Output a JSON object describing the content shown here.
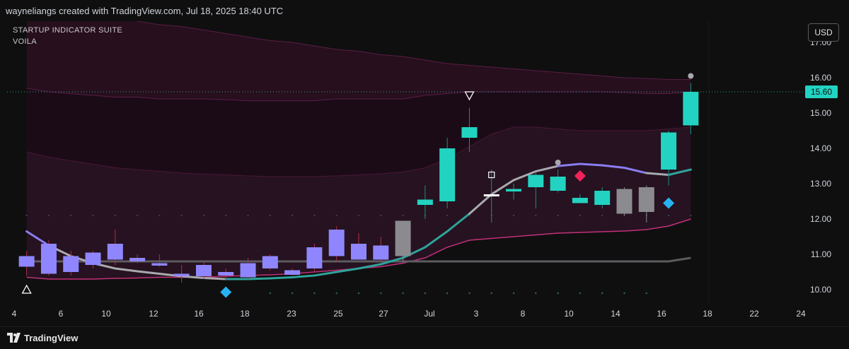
{
  "header": {
    "caption": "wayneliangs created with TradingView.com, Jul 18, 2025 18:40 UTC"
  },
  "indicators": {
    "line1": "STARTUP INDICATOR SUITE",
    "line2": "VOILA"
  },
  "currency_button": "USD",
  "footer": {
    "brand": "TradingView"
  },
  "colors": {
    "background": "#0f0f0f",
    "bull_candle": "#22d3c1",
    "bear_candle": "#8f86ff",
    "neutral_candle": "#8b8b8f",
    "band_fill": "#3a1530",
    "band_line": "#c2307a",
    "ma_teal": "#2fa39a",
    "ma_grey": "#a9a9ad",
    "ma_purple": "#8b7cf0",
    "last_price_label": "#22d3c1",
    "marker_diamond_blue": "#27b3f2",
    "marker_diamond_red": "#f0245a"
  },
  "chart_data": {
    "type": "candlestick",
    "title": "",
    "currency": "USD",
    "last_price": "15.60",
    "y_axis": {
      "ylim": [
        9.6,
        17.6
      ],
      "ticks": [
        "10.00",
        "11.00",
        "12.00",
        "13.00",
        "14.00",
        "15.00",
        "16.00",
        "17.00"
      ]
    },
    "x_axis": {
      "ticks": [
        "4",
        "6",
        "10",
        "12",
        "16",
        "18",
        "23",
        "25",
        "27",
        "Jul",
        "3",
        "8",
        "10",
        "14",
        "16",
        "18",
        "22",
        "24"
      ]
    },
    "candles": [
      {
        "i": 0,
        "o": 10.65,
        "h": 11.1,
        "l": 10.4,
        "c": 10.95,
        "color": "bear"
      },
      {
        "i": 1,
        "o": 11.3,
        "h": 11.4,
        "l": 10.4,
        "c": 10.45,
        "color": "bear"
      },
      {
        "i": 2,
        "o": 10.95,
        "h": 11.1,
        "l": 10.4,
        "c": 10.5,
        "color": "bear"
      },
      {
        "i": 3,
        "o": 11.05,
        "h": 11.1,
        "l": 10.6,
        "c": 10.7,
        "color": "bear"
      },
      {
        "i": 4,
        "o": 11.3,
        "h": 11.7,
        "l": 10.7,
        "c": 10.85,
        "color": "bear"
      },
      {
        "i": 5,
        "o": 10.9,
        "h": 11.0,
        "l": 10.75,
        "c": 10.8,
        "color": "bear"
      },
      {
        "i": 6,
        "o": 10.75,
        "h": 11.0,
        "l": 10.65,
        "c": 10.68,
        "color": "bear"
      },
      {
        "i": 7,
        "o": 10.45,
        "h": 10.7,
        "l": 10.2,
        "c": 10.38,
        "color": "bear"
      },
      {
        "i": 8,
        "o": 10.7,
        "h": 10.8,
        "l": 10.3,
        "c": 10.38,
        "color": "bear"
      },
      {
        "i": 9,
        "o": 10.5,
        "h": 10.6,
        "l": 10.3,
        "c": 10.4,
        "color": "bear"
      },
      {
        "i": 10,
        "o": 10.75,
        "h": 10.9,
        "l": 10.3,
        "c": 10.35,
        "color": "bear"
      },
      {
        "i": 11,
        "o": 10.95,
        "h": 11.0,
        "l": 10.55,
        "c": 10.6,
        "color": "bear"
      },
      {
        "i": 12,
        "o": 10.55,
        "h": 10.6,
        "l": 10.4,
        "c": 10.42,
        "color": "bear"
      },
      {
        "i": 13,
        "o": 11.2,
        "h": 11.3,
        "l": 10.5,
        "c": 10.6,
        "color": "bear"
      },
      {
        "i": 14,
        "o": 11.7,
        "h": 11.8,
        "l": 10.8,
        "c": 10.95,
        "color": "bear"
      },
      {
        "i": 15,
        "o": 11.3,
        "h": 11.6,
        "l": 10.85,
        "c": 10.85,
        "color": "bear"
      },
      {
        "i": 16,
        "o": 11.25,
        "h": 11.5,
        "l": 10.8,
        "c": 10.85,
        "color": "bear"
      },
      {
        "i": 17,
        "o": 10.95,
        "h": 11.95,
        "l": 10.8,
        "c": 11.95,
        "color": "neutral"
      },
      {
        "i": 18,
        "o": 12.4,
        "h": 12.95,
        "l": 12.0,
        "c": 12.55,
        "color": "bull"
      },
      {
        "i": 19,
        "o": 12.5,
        "h": 14.3,
        "l": 12.3,
        "c": 14.0,
        "color": "bull"
      },
      {
        "i": 20,
        "o": 14.3,
        "h": 15.15,
        "l": 13.9,
        "c": 14.6,
        "color": "bull"
      },
      {
        "i": 21,
        "o": 12.7,
        "h": 13.4,
        "l": 11.9,
        "c": 12.7,
        "color": "white"
      },
      {
        "i": 22,
        "o": 12.78,
        "h": 13.0,
        "l": 12.55,
        "c": 12.85,
        "color": "bull"
      },
      {
        "i": 23,
        "o": 12.9,
        "h": 13.3,
        "l": 12.3,
        "c": 13.25,
        "color": "bull"
      },
      {
        "i": 24,
        "o": 12.8,
        "h": 13.4,
        "l": 12.75,
        "c": 13.2,
        "color": "bull"
      },
      {
        "i": 25,
        "o": 12.45,
        "h": 12.7,
        "l": 12.45,
        "c": 12.6,
        "color": "bull"
      },
      {
        "i": 26,
        "o": 12.4,
        "h": 12.9,
        "l": 12.3,
        "c": 12.8,
        "color": "bull"
      },
      {
        "i": 27,
        "o": 12.85,
        "h": 12.9,
        "l": 12.1,
        "c": 12.15,
        "color": "neutral"
      },
      {
        "i": 28,
        "o": 12.9,
        "h": 12.95,
        "l": 11.9,
        "c": 12.2,
        "color": "neutral"
      },
      {
        "i": 29,
        "o": 13.4,
        "h": 14.5,
        "l": 12.95,
        "c": 14.45,
        "color": "bull"
      },
      {
        "i": 30,
        "o": 14.65,
        "h": 15.85,
        "l": 14.4,
        "c": 15.6,
        "color": "bull"
      }
    ],
    "moving_average_flat": [
      10.8,
      10.8,
      10.8,
      10.8,
      10.8,
      10.8,
      10.8,
      10.8,
      10.8,
      10.8,
      10.8,
      10.8,
      10.8,
      10.8,
      10.8,
      10.8,
      10.8,
      10.8,
      10.8,
      10.8,
      10.8,
      10.8,
      10.8,
      10.8,
      10.8,
      10.8,
      10.8,
      10.8,
      10.8,
      10.8,
      10.9
    ],
    "moving_average_curve": [
      11.65,
      11.25,
      10.95,
      10.75,
      10.6,
      10.52,
      10.45,
      10.38,
      10.33,
      10.3,
      10.3,
      10.32,
      10.35,
      10.4,
      10.5,
      10.6,
      10.72,
      10.9,
      11.2,
      11.65,
      12.15,
      12.7,
      13.1,
      13.35,
      13.5,
      13.56,
      13.52,
      13.45,
      13.3,
      13.25,
      13.4
    ],
    "band_outer_upper": [
      18.0,
      17.95,
      17.9,
      17.8,
      17.7,
      17.6,
      17.5,
      17.45,
      17.35,
      17.25,
      17.15,
      17.05,
      17.0,
      16.9,
      16.8,
      16.75,
      16.65,
      16.6,
      16.5,
      16.4,
      16.35,
      16.3,
      16.25,
      16.2,
      16.15,
      16.1,
      16.05,
      16.0,
      15.98,
      15.95,
      15.95
    ],
    "band_mid_upper": [
      15.7,
      15.6,
      15.55,
      15.5,
      15.45,
      15.45,
      15.4,
      15.4,
      15.4,
      15.38,
      15.35,
      15.35,
      15.35,
      15.35,
      15.4,
      15.4,
      15.4,
      15.4,
      15.5,
      15.55,
      15.6,
      15.6,
      15.6,
      15.6,
      15.6,
      15.6,
      15.6,
      15.58,
      15.55,
      15.55,
      15.6
    ],
    "band_upper": [
      13.9,
      13.75,
      13.65,
      13.55,
      13.45,
      13.4,
      13.35,
      13.3,
      13.27,
      13.25,
      13.22,
      13.2,
      13.2,
      13.2,
      13.22,
      13.25,
      13.28,
      13.33,
      13.45,
      13.7,
      14.05,
      14.4,
      14.6,
      14.6,
      14.55,
      14.5,
      14.5,
      14.5,
      14.5,
      14.55,
      14.6
    ],
    "band_lower": [
      10.35,
      10.3,
      10.3,
      10.3,
      10.32,
      10.33,
      10.35,
      10.35,
      10.35,
      10.38,
      10.4,
      10.42,
      10.45,
      10.5,
      10.55,
      10.6,
      10.65,
      10.75,
      10.9,
      11.2,
      11.4,
      11.45,
      11.5,
      11.55,
      11.6,
      11.62,
      11.64,
      11.66,
      11.7,
      11.8,
      12.0
    ],
    "markers": [
      {
        "i": 0,
        "price": 10.0,
        "shape": "triangle-up",
        "color": "#ffffff"
      },
      {
        "i": 9,
        "price": 9.93,
        "shape": "diamond",
        "color": "#27b3f2"
      },
      {
        "i": 20,
        "price": 15.5,
        "shape": "triangle-down",
        "color": "#ffffff"
      },
      {
        "i": 21,
        "price": 13.25,
        "shape": "square",
        "color": "#ffffff"
      },
      {
        "i": 24,
        "price": 13.6,
        "shape": "dot",
        "color": "#a9a9ad"
      },
      {
        "i": 25,
        "price": 13.22,
        "shape": "diamond",
        "color": "#f0245a"
      },
      {
        "i": 29,
        "price": 12.45,
        "shape": "diamond",
        "color": "#27b3f2"
      },
      {
        "i": 30,
        "price": 16.05,
        "shape": "dot",
        "color": "#a9a9ad"
      }
    ]
  }
}
